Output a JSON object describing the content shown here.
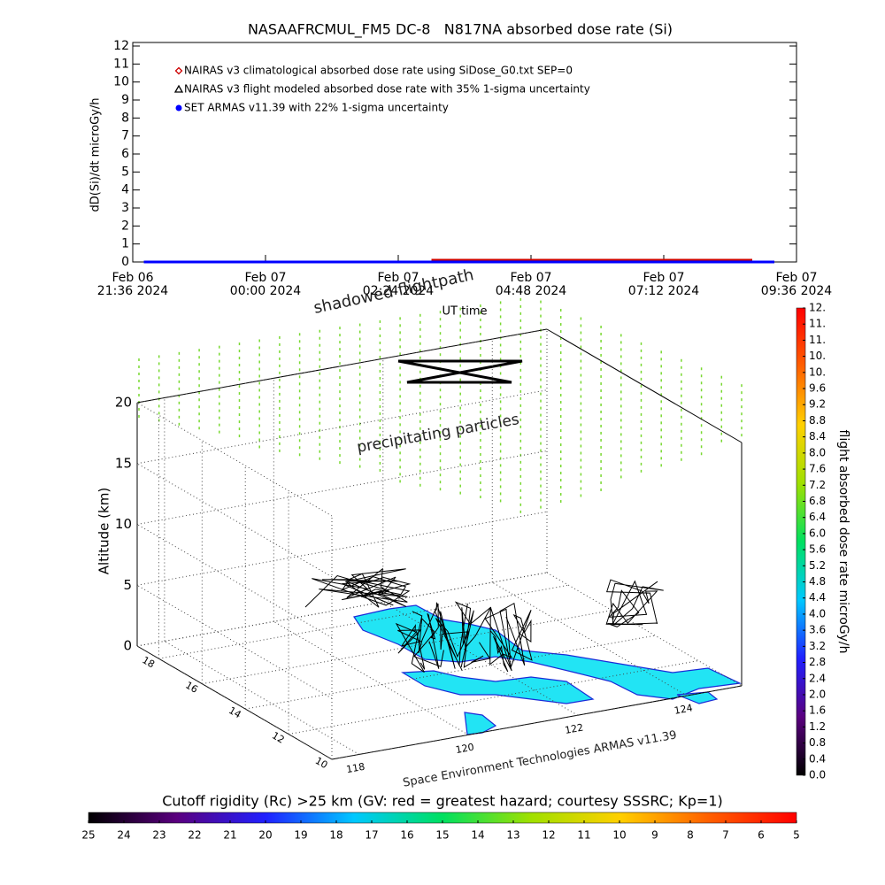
{
  "chart_data": [
    {
      "type": "line",
      "title": "NASAAFRCMUL_FM5 DC-8   N817NA absorbed dose rate (Si)",
      "y_label": "dD(Si)/dt microGy/h",
      "x_label": "UT time",
      "xlim": [
        "2024-02-06T21:36",
        "2024-02-07T09:36"
      ],
      "xticks": [
        {
          "value": "2024-02-06T21:36",
          "label": "Feb 06\n21:36 2024"
        },
        {
          "value": "2024-02-07T00:00",
          "label": "Feb 07\n00:00 2024"
        },
        {
          "value": "2024-02-07T02:24",
          "label": "Feb 07\n02:24 2024"
        },
        {
          "value": "2024-02-07T04:48",
          "label": "Feb 07\n04:48 2024"
        },
        {
          "value": "2024-02-07T07:12",
          "label": "Feb 07\n07:12 2024"
        },
        {
          "value": "2024-02-07T09:36",
          "label": "Feb 07\n09:36 2024"
        }
      ],
      "ylim": [
        0,
        12
      ],
      "yticks": [
        0,
        1,
        2,
        3,
        4,
        5,
        6,
        7,
        8,
        9,
        10,
        11,
        12
      ],
      "series": [
        {
          "name": "NAIRAS v3 climatological absorbed dose rate using SiDose_G0.txt SEP=0",
          "color": "#cc0000",
          "marker": "diamond",
          "x": [
            "2024-02-07T03:00",
            "2024-02-07T04:00",
            "2024-02-07T05:00",
            "2024-02-07T06:00",
            "2024-02-07T07:00",
            "2024-02-07T08:00",
            "2024-02-07T08:48"
          ],
          "values": [
            0.1,
            0.1,
            0.1,
            0.1,
            0.1,
            0.1,
            0.1
          ]
        },
        {
          "name": "NAIRAS v3 flight modeled absorbed dose rate with 35% 1-sigma uncertainty",
          "color": "#000000",
          "marker": "triangle",
          "x": [
            "2024-02-06T21:48",
            "2024-02-07T00:00",
            "2024-02-07T03:00",
            "2024-02-07T06:00",
            "2024-02-07T09:12"
          ],
          "values": [
            0.0,
            0.0,
            0.0,
            0.0,
            0.0
          ]
        },
        {
          "name": "SET ARMAS v11.39 with 22% 1-sigma uncertainty",
          "color": "#0000ff",
          "marker": "circle",
          "x": [
            "2024-02-06T21:48",
            "2024-02-07T00:00",
            "2024-02-07T03:00",
            "2024-02-07T06:00",
            "2024-02-07T09:12"
          ],
          "values": [
            0.0,
            0.0,
            0.0,
            0.0,
            0.0
          ]
        }
      ]
    },
    {
      "type": "scatter3d",
      "z_label": "Altitude (km)",
      "xlim": [
        117.5,
        125
      ],
      "xticks": [
        118,
        120,
        122,
        124
      ],
      "ylim": [
        10,
        19
      ],
      "yticks": [
        10,
        12,
        14,
        16,
        18
      ],
      "zlim": [
        0,
        20
      ],
      "zticks": [
        0,
        5,
        10,
        15,
        20
      ],
      "annotations": [
        "shadowed flightpath",
        "precipitating particles",
        "Space Environment Technologies ARMAS v11.39"
      ]
    },
    {
      "type": "colorbar",
      "orientation": "vertical",
      "label": "flight absorbed dose rate microGy/h",
      "lim": [
        0,
        11.6
      ],
      "colors": [
        "#000000",
        "#5a007f",
        "#2020ff",
        "#00c8ff",
        "#00e060",
        "#a0e000",
        "#ffd000",
        "#ff6000",
        "#ff0000"
      ],
      "ticks": [
        {
          "value": 0,
          "label": "0.0"
        },
        0.4,
        0.8,
        1.2,
        1.6,
        {
          "value": 2,
          "label": "2.0"
        },
        2.4,
        2.8,
        3.2,
        3.6,
        {
          "value": 4,
          "label": "4.0"
        },
        4.4,
        4.8,
        5.2,
        5.6,
        {
          "value": 6,
          "label": "6.0"
        },
        6.4,
        6.8,
        7.2,
        7.6,
        {
          "value": 8,
          "label": "8.0"
        },
        8.4,
        8.8,
        9.2,
        9.6,
        {
          "value": 10,
          "label": "10."
        },
        {
          "value": 10.4,
          "label": "10."
        },
        {
          "value": 10.8,
          "label": "11."
        },
        {
          "value": 11.2,
          "label": "11."
        },
        {
          "value": 11.6,
          "label": "12."
        }
      ]
    },
    {
      "type": "colorbar",
      "orientation": "horizontal",
      "label": "Cutoff rigidity (Rc) >25 km (GV: red = greatest hazard; courtesy SSSRC; Kp=1)",
      "lim": [
        25,
        5
      ],
      "colors": [
        "#000000",
        "#5a007f",
        "#2020ff",
        "#00c8ff",
        "#00e060",
        "#a0e000",
        "#ffd000",
        "#ff6000",
        "#ff0000"
      ],
      "ticks": [
        25,
        24,
        23,
        22,
        21,
        20,
        19,
        18,
        17,
        16,
        15,
        14,
        13,
        12,
        11,
        10,
        9,
        8,
        7,
        6,
        5
      ]
    }
  ]
}
